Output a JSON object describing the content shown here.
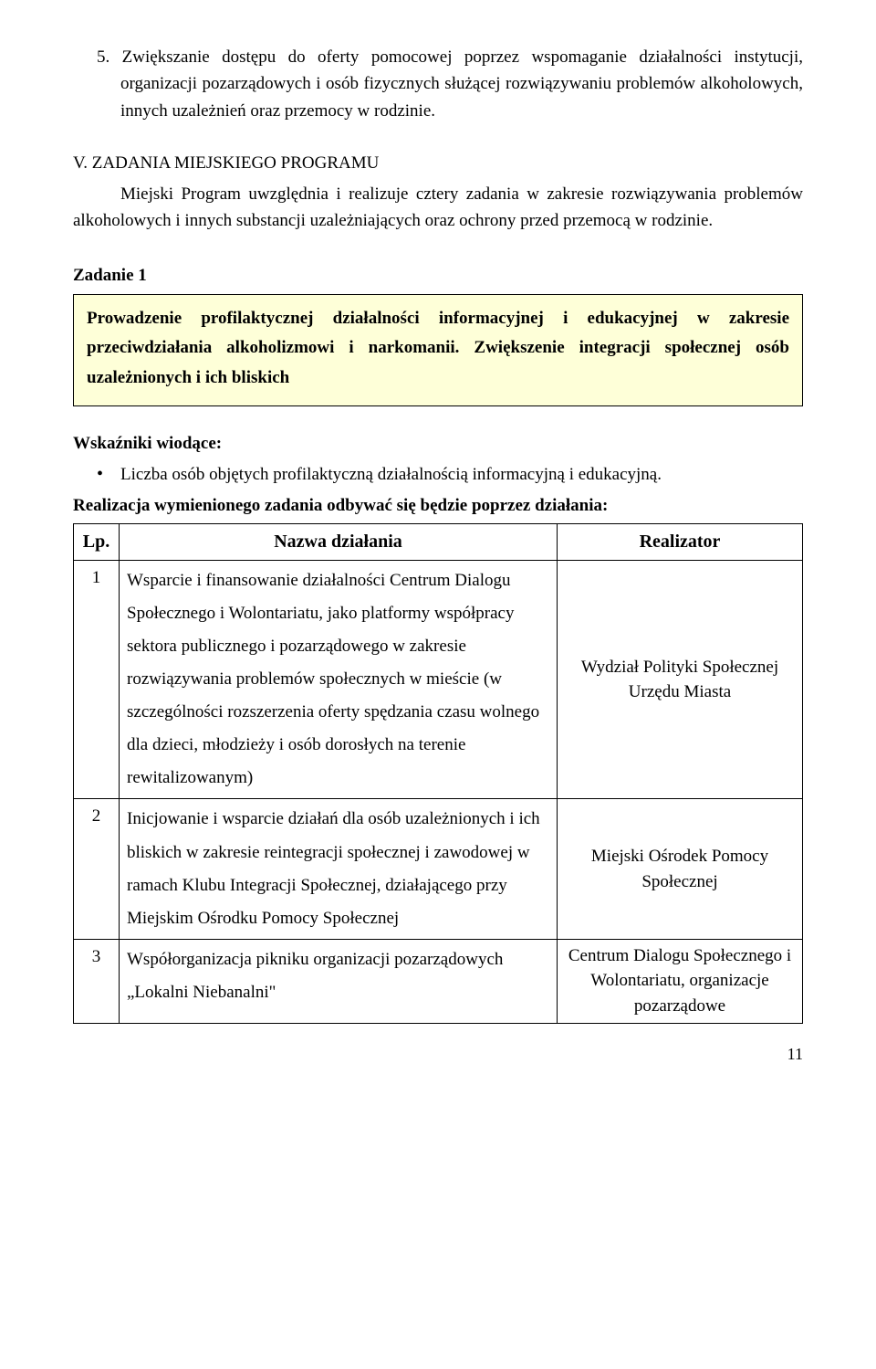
{
  "numbered_item": {
    "num": "5.",
    "text": "Zwiększanie dostępu do oferty pomocowej poprzez wspomaganie działalności instytucji, organizacji pozarządowych i osób fizycznych służącej rozwiązywaniu problemów alkoholowych, innych uzależnień oraz przemocy w rodzinie."
  },
  "section_v": {
    "heading": "V. ZADANIA  MIEJSKIEGO PROGRAMU",
    "body": "Miejski Program uwzględnia i realizuje cztery zadania w zakresie rozwiązywania problemów alkoholowych i innych substancji uzależniających oraz ochrony przed przemocą w rodzinie."
  },
  "zadanie_label": "Zadanie 1",
  "highlight_text": "Prowadzenie profilaktycznej działalności informacyjnej i edukacyjnej w zakresie przeciwdziałania alkoholizmowi i narkomanii. Zwiększenie integracji społecznej osób uzależnionych i ich bliskich",
  "indicators_label": "Wskaźniki wiodące:",
  "indicators": [
    "Liczba osób objętych profilaktyczną działalnością informacyjną i edukacyjną."
  ],
  "realization_intro": "Realizacja wymienionego zadania odbywać się będzie poprzez działania:",
  "table": {
    "headers": {
      "lp": "Lp.",
      "name": "Nazwa działania",
      "realizer": "Realizator"
    },
    "rows": [
      {
        "lp": "1",
        "name": "Wsparcie i finansowanie działalności Centrum Dialogu Społecznego i Wolontariatu, jako platformy współpracy sektora publicznego i pozarządowego w zakresie rozwiązywania problemów społecznych w mieście (w szczególności rozszerzenia oferty spędzania czasu wolnego dla dzieci, młodzieży i osób dorosłych na terenie rewitalizowanym)",
        "realizer": "Wydział Polityki Społecznej Urzędu Miasta"
      },
      {
        "lp": "2",
        "name": "Inicjowanie i wsparcie działań dla osób uzależnionych i ich bliskich w zakresie reintegracji społecznej i zawodowej w ramach Klubu Integracji Społecznej, działającego przy Miejskim Ośrodku Pomocy Społecznej",
        "realizer": "Miejski Ośrodek Pomocy Społecznej"
      },
      {
        "lp": "3",
        "name": "Współorganizacja pikniku organizacji pozarządowych „Lokalni Niebanalni\"",
        "realizer": "Centrum Dialogu Społecznego i Wolontariatu, organizacje pozarządowe"
      }
    ]
  },
  "page_number": "11",
  "colors": {
    "highlight_bg": "#feffd8",
    "border": "#000000",
    "text": "#000000",
    "page_bg": "#ffffff"
  }
}
